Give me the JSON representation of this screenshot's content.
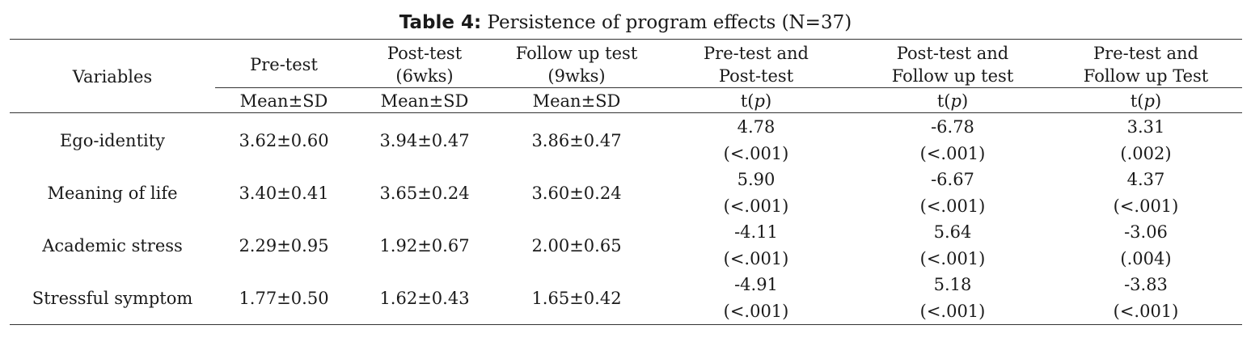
{
  "table": {
    "label": "Table 4:",
    "caption": "Persistence of program effects (N=37)",
    "headers": {
      "variables": "Variables",
      "pre": "Pre-test",
      "post_l1": "Post-test",
      "post_l2": "(6wks)",
      "follow_l1": "Follow up test",
      "follow_l2": "(9wks)",
      "pp_l1": "Pre-test and",
      "pp_l2": "Post-test",
      "pf_l1": "Post-test and",
      "pf_l2": "Follow up test",
      "prf_l1": "Pre-test and",
      "prf_l2": "Follow up Test"
    },
    "subheaders": {
      "mean": "Mean±SD",
      "t_open": "t(",
      "p": "p",
      "t_close": ")"
    },
    "rows": [
      {
        "variable": "Ego-identity",
        "pre": "3.62±0.60",
        "post": "3.94±0.47",
        "follow": "3.86±0.47",
        "pp_t": "4.78",
        "pp_p": "(<.001)",
        "pf_t": "-6.78",
        "pf_p": "(<.001)",
        "prf_t": "3.31",
        "prf_p": "(.002)"
      },
      {
        "variable": "Meaning of life",
        "pre": "3.40±0.41",
        "post": "3.65±0.24",
        "follow": "3.60±0.24",
        "pp_t": "5.90",
        "pp_p": "(<.001)",
        "pf_t": "-6.67",
        "pf_p": "(<.001)",
        "prf_t": "4.37",
        "prf_p": "(<.001)"
      },
      {
        "variable": "Academic stress",
        "pre": "2.29±0.95",
        "post": "1.92±0.67",
        "follow": "2.00±0.65",
        "pp_t": "-4.11",
        "pp_p": "(<.001)",
        "pf_t": "5.64",
        "pf_p": "(<.001)",
        "prf_t": "-3.06",
        "prf_p": "(.004)"
      },
      {
        "variable": "Stressful symptom",
        "pre": "1.77±0.50",
        "post": "1.62±0.43",
        "follow": "1.65±0.42",
        "pp_t": "-4.91",
        "pp_p": "(<.001)",
        "pf_t": "5.18",
        "pf_p": "(<.001)",
        "prf_t": "-3.83",
        "prf_p": "(<.001)"
      }
    ]
  }
}
